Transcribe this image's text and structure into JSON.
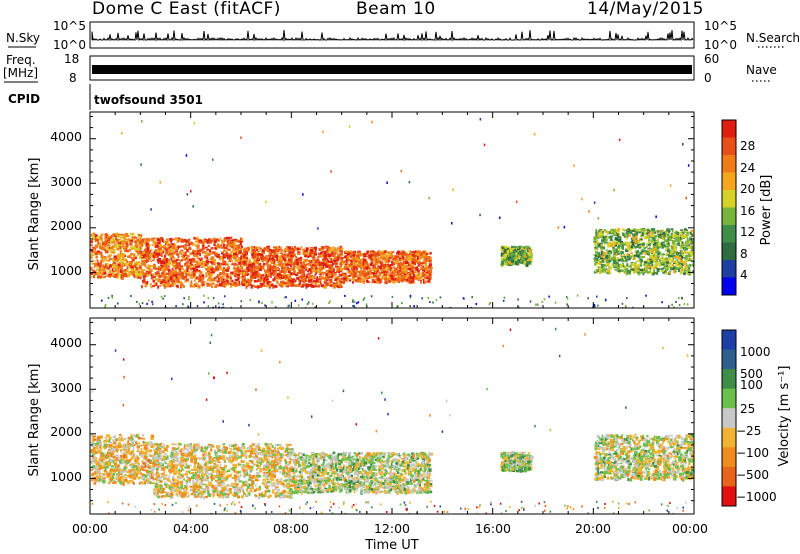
{
  "header": {
    "station": "Dome C East (fitACF)",
    "beam": "Beam 10",
    "date": "14/May/2015"
  },
  "strips": {
    "nsky_label": "N.Sky",
    "nsearch_label": "N.Search",
    "nsky_ticks": [
      "10^5",
      "10^0"
    ],
    "freq_label": "Freq.",
    "freq_unit": "[MHz]",
    "freq_ticks": [
      "18",
      "8"
    ],
    "nave_label": "Nave",
    "nave_ticks": [
      "60",
      "0"
    ],
    "cpid_label": "CPID",
    "cpid_value": "twofsound 3501"
  },
  "colorbars": {
    "power": {
      "label": "Power [dB]",
      "ticks": [
        "28",
        "24",
        "20",
        "16",
        "12",
        "8",
        "4"
      ]
    },
    "velocity": {
      "label": "Velocity [m s⁻¹]",
      "ticks": [
        "1000",
        "500",
        "100",
        "25",
        "−25",
        "−100",
        "−500",
        "−1000"
      ]
    }
  },
  "chart_data": [
    {
      "type": "heatmap",
      "title": "Power",
      "xlabel": "",
      "ylabel": "Slant Range [km]",
      "xlim": [
        0,
        24
      ],
      "ylim": [
        200,
        4600
      ],
      "yticks": [
        "4000",
        "3000",
        "2000",
        "1000"
      ],
      "colorbar_label": "Power [dB]",
      "colorbar_range": [
        0,
        32
      ],
      "echo_regions": [
        {
          "t": [
            0.0,
            2.0
          ],
          "range_km": [
            900,
            1900
          ],
          "power_db": 24
        },
        {
          "t": [
            2.0,
            6.0
          ],
          "range_km": [
            700,
            1800
          ],
          "power_db": 27
        },
        {
          "t": [
            6.0,
            10.0
          ],
          "range_km": [
            700,
            1600
          ],
          "power_db": 28
        },
        {
          "t": [
            10.0,
            13.5
          ],
          "range_km": [
            800,
            1500
          ],
          "power_db": 27
        },
        {
          "t": [
            16.3,
            17.5
          ],
          "range_km": [
            1200,
            1600
          ],
          "power_db": 14
        },
        {
          "t": [
            20.0,
            24.0
          ],
          "range_km": [
            1000,
            2000
          ],
          "power_db": 14
        }
      ]
    },
    {
      "type": "heatmap",
      "title": "Velocity",
      "xlabel": "Time UT",
      "ylabel": "Slant Range [km]",
      "xlim": [
        0,
        24
      ],
      "ylim": [
        200,
        4600
      ],
      "xticks": [
        "00:00",
        "04:00",
        "08:00",
        "12:00",
        "16:00",
        "20:00",
        "00:00"
      ],
      "yticks": [
        "4000",
        "3000",
        "2000",
        "1000"
      ],
      "colorbar_label": "Velocity [m s⁻¹]",
      "colorbar_range": [
        -1000,
        1000
      ],
      "echo_regions": [
        {
          "t": [
            0.0,
            2.5
          ],
          "range_km": [
            900,
            2000
          ],
          "velocity": -200
        },
        {
          "t": [
            2.5,
            8.0
          ],
          "range_km": [
            600,
            1800
          ],
          "velocity": -150
        },
        {
          "t": [
            8.0,
            13.5
          ],
          "range_km": [
            700,
            1600
          ],
          "velocity": 50
        },
        {
          "t": [
            16.3,
            17.5
          ],
          "range_km": [
            1200,
            1600
          ],
          "velocity": 100
        },
        {
          "t": [
            20.0,
            24.0
          ],
          "range_km": [
            1000,
            2000
          ],
          "velocity": 0
        }
      ]
    }
  ]
}
